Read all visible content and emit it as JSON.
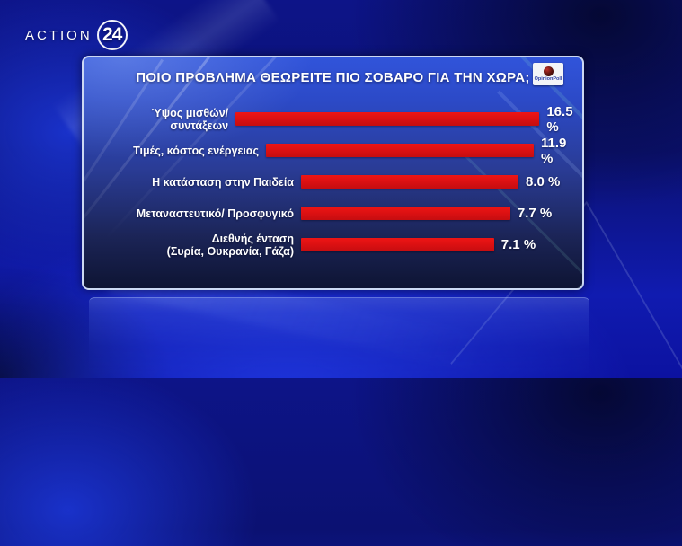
{
  "channel": {
    "name": "ACTION 24",
    "logo_text": "ACTION",
    "logo_number": "24"
  },
  "panel": {
    "title": "ΠΟΙΟ ΠΡΟΒΛΗΜΑ ΘΕΩΡΕΙΤΕ ΠΙΟ ΣΟΒΑΡΟ ΓΙΑ ΤΗΝ ΧΩΡΑ;",
    "badge_label": "OpinionPoll"
  },
  "chart_data": {
    "type": "bar",
    "orientation": "horizontal",
    "title": "ΠΟΙΟ ΠΡΟΒΛΗΜΑ ΘΕΩΡΕΙΤΕ ΠΙΟ ΣΟΒΑΡΟ ΓΙΑ ΤΗΝ ΧΩΡΑ;",
    "source_badge": "OpinionPoll",
    "categories": [
      "Ύψος μισθών/ συντάξεων",
      "Τιμές, κόστος ενέργειας",
      "Η κατάσταση στην Παιδεία",
      "Μεταναστευτικό/ Προσφυγικό",
      "Διεθνής ένταση (Συρία, Ουκρανία, Γάζα)"
    ],
    "labels_display": [
      [
        "Ύψος μισθών/ συντάξεων"
      ],
      [
        "Τιμές, κόστος ενέργειας"
      ],
      [
        "Η κατάσταση στην Παιδεία"
      ],
      [
        "Μεταναστευτικό/ Προσφυγικό"
      ],
      [
        "Διεθνής ένταση",
        "(Συρία, Ουκρανία, Γάζα)"
      ]
    ],
    "values": [
      16.5,
      11.9,
      8.0,
      7.7,
      7.1
    ],
    "value_labels": [
      "16.5 %",
      "11.9 %",
      "8.0 %",
      "7.7 %",
      "7.1 %"
    ],
    "unit": "%",
    "xlim": [
      0,
      20
    ],
    "grid": false,
    "legend": false,
    "bar_color": "#dd1013"
  },
  "colors": {
    "bar": "#dd1013",
    "panel_border": "#ccd8f2",
    "background_base": "#0b1172",
    "text": "#ffffff",
    "badge_text": "#2b3fa8"
  }
}
